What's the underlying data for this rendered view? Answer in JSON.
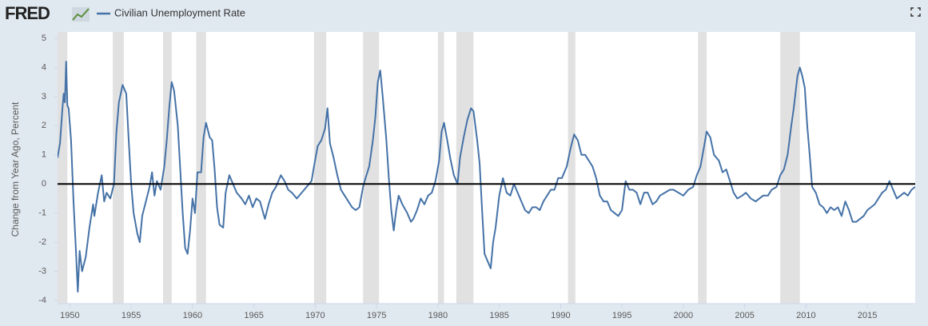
{
  "header": {
    "logo": "FRED"
  },
  "chart_data": {
    "type": "line",
    "y_label": "Change from Year Ago, Percent",
    "series": [
      {
        "name": "Civilian Unemployment Rate",
        "color": "#4572a7",
        "x": [
          1949.0,
          1949.2,
          1949.4,
          1949.5,
          1949.6,
          1949.7,
          1949.8,
          1949.9,
          1950.1,
          1950.3,
          1950.5,
          1950.65,
          1950.8,
          1951.0,
          1951.3,
          1951.6,
          1951.9,
          1952.0,
          1952.3,
          1952.6,
          1952.8,
          1953.0,
          1953.3,
          1953.6,
          1953.8,
          1954.0,
          1954.3,
          1954.6,
          1954.8,
          1955.0,
          1955.2,
          1955.5,
          1955.7,
          1955.9,
          1956.2,
          1956.5,
          1956.7,
          1956.9,
          1957.1,
          1957.4,
          1957.7,
          1957.9,
          1958.1,
          1958.3,
          1958.5,
          1958.8,
          1959.0,
          1959.2,
          1959.4,
          1959.6,
          1959.8,
          1960.0,
          1960.2,
          1960.4,
          1960.7,
          1960.9,
          1961.1,
          1961.4,
          1961.6,
          1961.8,
          1962.0,
          1962.2,
          1962.5,
          1962.7,
          1963.0,
          1963.3,
          1963.6,
          1964.0,
          1964.3,
          1964.6,
          1964.9,
          1965.2,
          1965.5,
          1965.9,
          1966.2,
          1966.5,
          1966.8,
          1967.2,
          1967.5,
          1967.8,
          1968.1,
          1968.5,
          1968.9,
          1969.3,
          1969.7,
          1969.9,
          1970.2,
          1970.5,
          1970.8,
          1971.0,
          1971.2,
          1971.5,
          1971.8,
          1972.1,
          1972.4,
          1972.7,
          1973.0,
          1973.3,
          1973.6,
          1973.9,
          1974.1,
          1974.4,
          1974.7,
          1974.9,
          1975.1,
          1975.3,
          1975.5,
          1975.8,
          1976.0,
          1976.2,
          1976.4,
          1976.6,
          1976.8,
          1977.1,
          1977.5,
          1977.8,
          1978.0,
          1978.3,
          1978.6,
          1978.9,
          1979.2,
          1979.5,
          1979.8,
          1980.1,
          1980.3,
          1980.5,
          1980.8,
          1981.0,
          1981.3,
          1981.6,
          1981.8,
          1982.1,
          1982.4,
          1982.7,
          1982.9,
          1983.2,
          1983.4,
          1983.6,
          1983.8,
          1984.0,
          1984.3,
          1984.5,
          1984.7,
          1985.0,
          1985.3,
          1985.6,
          1985.9,
          1986.2,
          1986.5,
          1986.8,
          1987.1,
          1987.4,
          1987.7,
          1988.0,
          1988.3,
          1988.6,
          1988.9,
          1989.2,
          1989.5,
          1989.8,
          1990.1,
          1990.5,
          1990.8,
          1991.1,
          1991.4,
          1991.7,
          1992.0,
          1992.3,
          1992.6,
          1992.9,
          1993.2,
          1993.5,
          1993.8,
          1994.1,
          1994.4,
          1994.7,
          1995.0,
          1995.3,
          1995.6,
          1995.9,
          1996.2,
          1996.5,
          1996.8,
          1997.1,
          1997.5,
          1997.8,
          1998.1,
          1998.5,
          1998.9,
          1999.2,
          1999.6,
          2000.0,
          2000.4,
          2000.8,
          2001.1,
          2001.4,
          2001.7,
          2001.9,
          2002.2,
          2002.5,
          2002.9,
          2003.2,
          2003.5,
          2003.8,
          2004.1,
          2004.4,
          2004.8,
          2005.1,
          2005.5,
          2005.9,
          2006.2,
          2006.5,
          2006.9,
          2007.2,
          2007.6,
          2007.9,
          2008.2,
          2008.5,
          2008.8,
          2009.0,
          2009.3,
          2009.5,
          2009.7,
          2009.9,
          2010.1,
          2010.3,
          2010.5,
          2010.8,
          2011.1,
          2011.4,
          2011.7,
          2012.0,
          2012.3,
          2012.6,
          2012.9,
          2013.2,
          2013.5,
          2013.8,
          2014.1,
          2014.4,
          2014.7,
          2015.0,
          2015.3,
          2015.6,
          2015.9,
          2016.2,
          2016.5,
          2016.8,
          2017.1,
          2017.4,
          2017.7,
          2018.0,
          2018.3,
          2018.6,
          2018.9
        ],
        "values": [
          0.9,
          1.4,
          2.6,
          3.1,
          2.8,
          4.2,
          2.7,
          2.6,
          1.5,
          -0.6,
          -2.3,
          -3.7,
          -2.3,
          -3.0,
          -2.5,
          -1.5,
          -0.7,
          -1.1,
          -0.3,
          0.3,
          -0.6,
          -0.3,
          -0.5,
          0.0,
          1.8,
          2.8,
          3.4,
          3.1,
          1.5,
          0.0,
          -1.0,
          -1.7,
          -2.0,
          -1.1,
          -0.6,
          -0.1,
          0.4,
          -0.4,
          0.1,
          -0.2,
          0.6,
          1.5,
          2.6,
          3.5,
          3.2,
          2.0,
          0.5,
          -1.0,
          -2.2,
          -2.4,
          -1.6,
          -0.5,
          -1.0,
          0.4,
          0.4,
          1.6,
          2.1,
          1.6,
          1.5,
          0.5,
          -0.8,
          -1.4,
          -1.5,
          -0.3,
          0.3,
          0.0,
          -0.3,
          -0.5,
          -0.7,
          -0.4,
          -0.8,
          -0.5,
          -0.6,
          -1.2,
          -0.7,
          -0.3,
          -0.1,
          0.3,
          0.1,
          -0.2,
          -0.3,
          -0.5,
          -0.3,
          -0.1,
          0.1,
          0.6,
          1.3,
          1.5,
          1.9,
          2.6,
          1.4,
          0.9,
          0.3,
          -0.2,
          -0.4,
          -0.6,
          -0.8,
          -0.9,
          -0.8,
          -0.1,
          0.2,
          0.6,
          1.5,
          2.3,
          3.5,
          3.9,
          3.0,
          1.5,
          0.2,
          -0.9,
          -1.6,
          -0.9,
          -0.4,
          -0.7,
          -1.0,
          -1.3,
          -1.2,
          -0.9,
          -0.5,
          -0.7,
          -0.4,
          -0.3,
          0.1,
          0.8,
          1.8,
          2.1,
          1.4,
          0.9,
          0.3,
          0.0,
          0.9,
          1.6,
          2.2,
          2.6,
          2.5,
          1.5,
          0.7,
          -0.9,
          -2.4,
          -2.6,
          -2.9,
          -2.0,
          -1.5,
          -0.4,
          0.2,
          -0.3,
          -0.4,
          0.0,
          -0.3,
          -0.6,
          -0.9,
          -1.0,
          -0.8,
          -0.8,
          -0.9,
          -0.6,
          -0.4,
          -0.2,
          -0.2,
          0.2,
          0.2,
          0.6,
          1.2,
          1.7,
          1.5,
          1.0,
          1.0,
          0.8,
          0.6,
          0.2,
          -0.4,
          -0.6,
          -0.6,
          -0.9,
          -1.0,
          -1.1,
          -0.9,
          0.1,
          -0.2,
          -0.2,
          -0.3,
          -0.7,
          -0.3,
          -0.3,
          -0.7,
          -0.6,
          -0.4,
          -0.3,
          -0.2,
          -0.2,
          -0.3,
          -0.4,
          -0.2,
          -0.1,
          0.3,
          0.6,
          1.3,
          1.8,
          1.6,
          1.0,
          0.8,
          0.4,
          0.5,
          0.1,
          -0.3,
          -0.5,
          -0.4,
          -0.3,
          -0.5,
          -0.6,
          -0.5,
          -0.4,
          -0.4,
          -0.2,
          -0.1,
          0.3,
          0.5,
          1.0,
          2.0,
          2.6,
          3.7,
          4.0,
          3.7,
          3.3,
          2.0,
          1.0,
          -0.1,
          -0.3,
          -0.7,
          -0.8,
          -1.0,
          -0.8,
          -0.9,
          -0.8,
          -1.1,
          -0.6,
          -0.9,
          -1.3,
          -1.3,
          -1.2,
          -1.1,
          -0.9,
          -0.8,
          -0.7,
          -0.5,
          -0.3,
          -0.2,
          0.1,
          -0.2,
          -0.5,
          -0.4,
          -0.3,
          -0.4,
          -0.2,
          -0.1
        ]
      }
    ],
    "recessions": [
      [
        1948.9,
        1949.8
      ],
      [
        1953.5,
        1954.4
      ],
      [
        1957.6,
        1958.3
      ],
      [
        1960.3,
        1961.1
      ],
      [
        1969.9,
        1970.9
      ],
      [
        1973.9,
        1975.2
      ],
      [
        1980.0,
        1980.5
      ],
      [
        1981.5,
        1982.9
      ],
      [
        1990.6,
        1991.2
      ],
      [
        2001.2,
        2001.9
      ],
      [
        2007.9,
        2009.5
      ]
    ],
    "recession_color": "#e1e1e1",
    "xlim": [
      1949.0,
      2018.9
    ],
    "xticks": [
      1950,
      1955,
      1960,
      1965,
      1970,
      1975,
      1980,
      1985,
      1990,
      1995,
      2000,
      2005,
      2010,
      2015
    ],
    "ylim": [
      -4,
      5
    ],
    "yticks": [
      -4,
      -3,
      -2,
      -1,
      0,
      1,
      2,
      3,
      4,
      5
    ],
    "grid": false,
    "zero_line": true
  }
}
